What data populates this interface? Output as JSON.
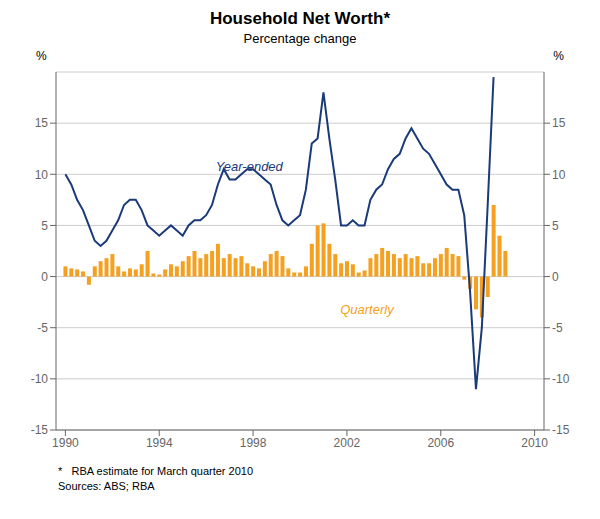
{
  "chart_data": {
    "type": "bar_line",
    "title": "Household Net Worth*",
    "subtitle": "Percentage change",
    "ylabel": "%",
    "y2label": "%",
    "footnotes": [
      "*   RBA estimate for March quarter 2010",
      "Sources: ABS; RBA"
    ],
    "x": [
      1990,
      1990.25,
      1990.5,
      1990.75,
      1991,
      1991.25,
      1991.5,
      1991.75,
      1992,
      1992.25,
      1992.5,
      1992.75,
      1993,
      1993.25,
      1993.5,
      1993.75,
      1994,
      1994.25,
      1994.5,
      1994.75,
      1995,
      1995.25,
      1995.5,
      1995.75,
      1996,
      1996.25,
      1996.5,
      1996.75,
      1997,
      1997.25,
      1997.5,
      1997.75,
      1998,
      1998.25,
      1998.5,
      1998.75,
      1999,
      1999.25,
      1999.5,
      1999.75,
      2000,
      2000.25,
      2000.5,
      2000.75,
      2001,
      2001.25,
      2001.5,
      2001.75,
      2002,
      2002.25,
      2002.5,
      2002.75,
      2003,
      2003.25,
      2003.5,
      2003.75,
      2004,
      2004.25,
      2004.5,
      2004.75,
      2005,
      2005.25,
      2005.5,
      2005.75,
      2006,
      2006.25,
      2006.5,
      2006.75,
      2007,
      2007.25,
      2007.5,
      2007.75,
      2008,
      2008.25,
      2008.5,
      2008.75
    ],
    "xlim": [
      1989.6,
      2010.4
    ],
    "xticks": [
      1990,
      1994,
      1998,
      2002,
      2006,
      2010
    ],
    "ylim": [
      -15,
      20
    ],
    "yticks": [
      -15,
      -10,
      -5,
      0,
      5,
      10,
      15
    ],
    "y2lim": [
      -15,
      20
    ],
    "y2ticks": [
      -15,
      -10,
      -5,
      0,
      5,
      10,
      15
    ],
    "grid": true,
    "series": [
      {
        "name": "Quarterly",
        "type": "bar",
        "color": "#f5a020",
        "values": [
          1.0,
          0.8,
          0.7,
          0.5,
          -0.8,
          1.0,
          1.5,
          1.8,
          2.2,
          1.0,
          0.5,
          0.8,
          0.7,
          1.2,
          2.5,
          0.3,
          0.2,
          0.7,
          1.2,
          1.0,
          1.5,
          2.0,
          2.5,
          1.8,
          2.2,
          2.5,
          3.2,
          1.8,
          2.2,
          1.8,
          2.0,
          1.3,
          1.0,
          0.8,
          1.5,
          2.2,
          2.5,
          2.0,
          0.8,
          0.4,
          0.4,
          1.0,
          3.2,
          5.0,
          5.2,
          3.2,
          2.2,
          1.3,
          1.5,
          1.2,
          0.4,
          0.6,
          1.8,
          2.2,
          2.8,
          2.5,
          2.2,
          1.8,
          2.2,
          1.8,
          2.0,
          1.3,
          1.3,
          1.8,
          2.2,
          2.8,
          2.2,
          2.0,
          -0.3,
          -1.2,
          -3.2,
          -4.0,
          -2.0,
          7.0,
          4.0,
          2.5
        ]
      },
      {
        "name": "Year-ended",
        "type": "line",
        "color": "#1a3a7a",
        "values": [
          10.0,
          9.0,
          7.5,
          6.5,
          5.0,
          3.5,
          3.0,
          3.5,
          4.5,
          5.5,
          7.0,
          7.5,
          7.5,
          6.5,
          5.0,
          4.5,
          4.0,
          4.5,
          5.0,
          4.5,
          4.0,
          5.0,
          5.5,
          5.5,
          6.0,
          7.0,
          9.0,
          10.5,
          9.5,
          9.5,
          10.0,
          10.5,
          10.5,
          10.0,
          9.5,
          9.0,
          7.0,
          5.5,
          5.0,
          5.5,
          6.0,
          8.5,
          13.0,
          13.5,
          18.0,
          13.5,
          9.5,
          5.0,
          5.0,
          5.5,
          5.0,
          5.0,
          7.5,
          8.5,
          9.0,
          10.5,
          11.5,
          12.0,
          13.5,
          14.5,
          13.5,
          12.5,
          12.0,
          11.0,
          10.0,
          9.0,
          8.5,
          8.5,
          6.0,
          -1.5,
          -11.0,
          -5.0,
          7.0,
          19.5,
          null,
          null
        ]
      }
    ],
    "annotations": [
      {
        "text": "Year-ended",
        "x": 1996.2,
        "y": 10.8,
        "color": "#1a3a7a"
      },
      {
        "text": "Quarterly",
        "x": 2001.5,
        "y": -3.2,
        "color": "#f5a020"
      }
    ]
  }
}
